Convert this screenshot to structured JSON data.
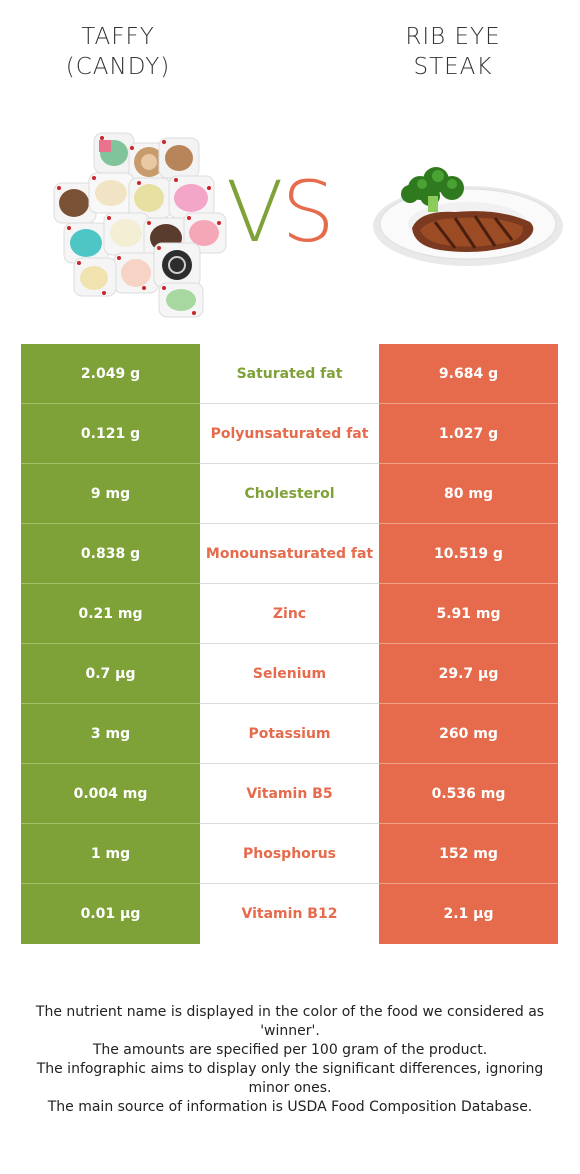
{
  "left_food": {
    "title": "TAFFY\n(CANDY)",
    "title_line1": "TAFFY",
    "title_line2": "(CANDY)",
    "image": "taffy-candy-image"
  },
  "right_food": {
    "title_line1": "RIB EYE",
    "title_line2": "STEAK",
    "image": "rib-eye-steak-image"
  },
  "vs": {
    "v": "V",
    "s": "S"
  },
  "colors": {
    "left": "#7ea237",
    "right": "#e56b4c"
  },
  "rows": [
    {
      "left": "2.049 g",
      "nutrient": "Saturated fat",
      "right": "9.684 g",
      "winner": "left"
    },
    {
      "left": "0.121 g",
      "nutrient": "Polyunsaturated fat",
      "right": "1.027 g",
      "winner": "right"
    },
    {
      "left": "9 mg",
      "nutrient": "Cholesterol",
      "right": "80 mg",
      "winner": "left"
    },
    {
      "left": "0.838 g",
      "nutrient": "Monounsaturated fat",
      "right": "10.519 g",
      "winner": "right"
    },
    {
      "left": "0.21 mg",
      "nutrient": "Zinc",
      "right": "5.91 mg",
      "winner": "right"
    },
    {
      "left": "0.7 µg",
      "nutrient": "Selenium",
      "right": "29.7 µg",
      "winner": "right"
    },
    {
      "left": "3 mg",
      "nutrient": "Potassium",
      "right": "260 mg",
      "winner": "right"
    },
    {
      "left": "0.004 mg",
      "nutrient": "Vitamin B5",
      "right": "0.536 mg",
      "winner": "right"
    },
    {
      "left": "1 mg",
      "nutrient": "Phosphorus",
      "right": "152 mg",
      "winner": "right"
    },
    {
      "left": "0.01 µg",
      "nutrient": "Vitamin B12",
      "right": "2.1 µg",
      "winner": "right"
    }
  ],
  "footer": {
    "line1": "The nutrient name is displayed in the color of the food we considered as 'winner'.",
    "line2": "The amounts are specified per 100 gram of the product.",
    "line3": "The infographic aims to display only the significant differences, ignoring minor ones.",
    "line4": "The main source of information is USDA Food Composition Database."
  }
}
